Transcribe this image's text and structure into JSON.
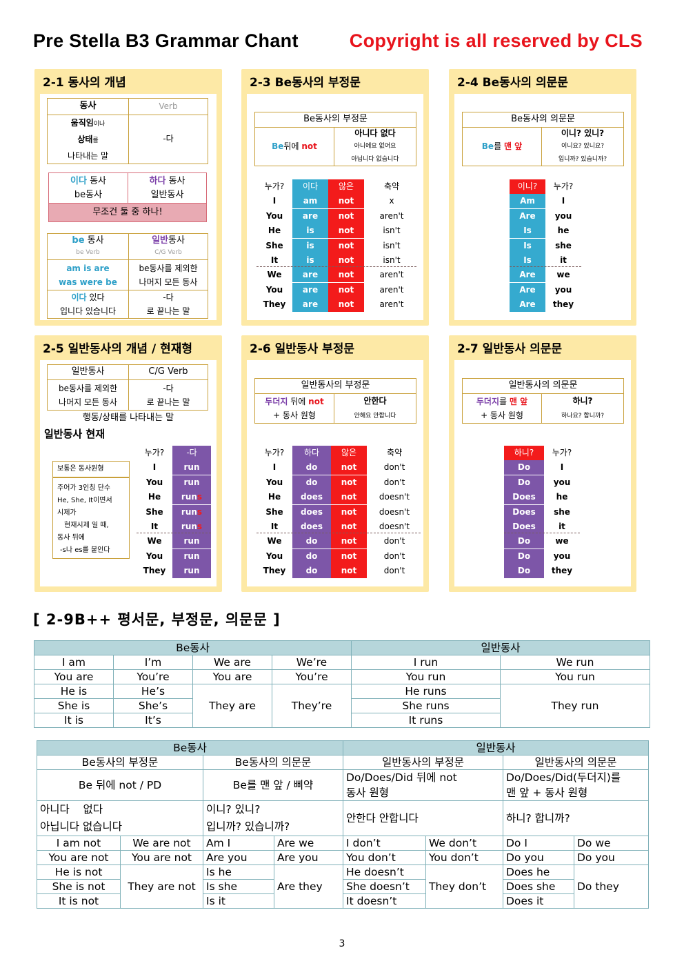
{
  "header": {
    "title": "Pre Stella B3 Grammar Chant",
    "copyright": "Copyright is all reserved by CLS"
  },
  "c21": {
    "title": "2-1 동사의 개념",
    "verb": "동사",
    "verb_en": "Verb",
    "def1": "움직임",
    "def1b": "이나",
    "def2": "상태",
    "def2b": "를",
    "def3": "나타내는 말",
    "da": "-다",
    "ida": "이다",
    "ida2": "동사",
    "be": "be동사",
    "hada": "하다",
    "hada2": "동사",
    "ilban": "일반동사",
    "must": "무조건 둘 중 하나!",
    "be_verb": "be",
    "be_verb2": "동사",
    "be_en": "be Verb",
    "ilban_h": "일반",
    "ilban_h2": "동사",
    "cg": "C/G Verb",
    "forms1": "am is are",
    "forms2": "was were be",
    "except1": "be동사를 제외한",
    "except2": "나머지 모든 동사",
    "ida3": "이다",
    "ida4": "있다",
    "da2": "-다",
    "ipnida": "입니다 있습니다",
    "ending": "로 끝나는 말"
  },
  "c23": {
    "title": "2-3 Be동사의 부정문",
    "hdr": "Be동사의 부정문",
    "rule_be": "Be",
    "rule_mid": "뒤에",
    "rule_not": "not",
    "mean": "아니다 없다",
    "mean2": "아니에요 없어요",
    "mean3": "아닙니다 없습니다",
    "col_who": "누가?",
    "col_ida": "이다",
    "col_not": "않은",
    "col_short": "축약",
    "rows": [
      [
        "I",
        "am",
        "not",
        "x"
      ],
      [
        "You",
        "are",
        "not",
        "aren't"
      ],
      [
        "He",
        "is",
        "not",
        "isn't"
      ],
      [
        "She",
        "is",
        "not",
        "isn't"
      ],
      [
        "It",
        "is",
        "not",
        "isn't"
      ],
      [
        "We",
        "are",
        "not",
        "aren't"
      ],
      [
        "You",
        "are",
        "not",
        "aren't"
      ],
      [
        "They",
        "are",
        "not",
        "aren't"
      ]
    ]
  },
  "c24": {
    "title": "2-4 Be동사의 의문문",
    "hdr": "Be동사의 의문문",
    "rule_be": "Be",
    "rule_mid": "를",
    "rule_front": "맨 앞",
    "mean": "이니? 있니?",
    "mean2": "이니요? 있니요?",
    "mean3": "입니까? 있습니까?",
    "col_q": "이니?",
    "col_who": "누가?",
    "rows": [
      [
        "Am",
        "I"
      ],
      [
        "Are",
        "you"
      ],
      [
        "Is",
        "he"
      ],
      [
        "Is",
        "she"
      ],
      [
        "Is",
        "it"
      ],
      [
        "Are",
        "we"
      ],
      [
        "Are",
        "you"
      ],
      [
        "Are",
        "they"
      ]
    ]
  },
  "c25": {
    "title": "2-5 일반동사의 개념 / 현재형",
    "h1": "일반동사",
    "h2": "C/G Verb",
    "r1a": "be동사를 제외한",
    "r1b": "-다",
    "r2a": "나머지 모든 동사",
    "r2b": "로 끝나는 말",
    "desc": "행동/상태를 나타내는 말",
    "sub": "일반동사 현재",
    "note1": "보통은 동사원형",
    "note2": "주어가 3인칭 단수",
    "note3": "He, She, It이면서",
    "note4": "시제가",
    "note5": "현재시제 일 때,",
    "note6": "동사 뒤에",
    "note7": "-s나 es를 붙인다",
    "col_who": "누가?",
    "col_da": "-다",
    "rows": [
      [
        "I",
        "run",
        ""
      ],
      [
        "You",
        "run",
        ""
      ],
      [
        "He",
        "run",
        "s"
      ],
      [
        "She",
        "run",
        "s"
      ],
      [
        "It",
        "run",
        "s"
      ],
      [
        "We",
        "run",
        ""
      ],
      [
        "You",
        "run",
        ""
      ],
      [
        "They",
        "run",
        ""
      ]
    ]
  },
  "c26": {
    "title": "2-6 일반동사 부정문",
    "hdr": "일반동사의 부정문",
    "rule_a": "두더지",
    "rule_b": "뒤에",
    "rule_not": "not",
    "rule_c": "+ 동사 원형",
    "mean": "안한다",
    "mean2": "안해요 안합니다",
    "col_who": "누가?",
    "col_do": "하다",
    "col_not": "않은",
    "col_short": "축약",
    "rows": [
      [
        "I",
        "do",
        "not",
        "don't"
      ],
      [
        "You",
        "do",
        "not",
        "don't"
      ],
      [
        "He",
        "does",
        "not",
        "doesn't"
      ],
      [
        "She",
        "does",
        "not",
        "doesn't"
      ],
      [
        "It",
        "does",
        "not",
        "doesn't"
      ],
      [
        "We",
        "do",
        "not",
        "don't"
      ],
      [
        "You",
        "do",
        "not",
        "don't"
      ],
      [
        "They",
        "do",
        "not",
        "don't"
      ]
    ]
  },
  "c27": {
    "title": "2-7 일반동사 의문문",
    "hdr": "일반동사의 의문문",
    "rule_a": "두더지",
    "rule_b": "를",
    "rule_front": "맨 앞",
    "rule_c": "+ 동사 원형",
    "mean": "하니?",
    "mean2": "하나요? 합니까?",
    "col_q": "하니?",
    "col_who": "누가?",
    "rows": [
      [
        "Do",
        "I"
      ],
      [
        "Do",
        "you"
      ],
      [
        "Does",
        "he"
      ],
      [
        "Does",
        "she"
      ],
      [
        "Does",
        "it"
      ],
      [
        "Do",
        "we"
      ],
      [
        "Do",
        "you"
      ],
      [
        "Do",
        "they"
      ]
    ]
  },
  "section": "[ 2-9B++ 평서문, 부정문, 의문문 ]",
  "t1": {
    "h_be": "Be동사",
    "h_ilban": "일반동사",
    "r": [
      [
        "I am",
        "I’m",
        "We are",
        "We’re",
        "I run",
        "We run"
      ],
      [
        "You are",
        "You’re",
        "You are",
        "You’re",
        "You run",
        "You run"
      ]
    ],
    "he": [
      "He is",
      "He’s"
    ],
    "she": [
      "She is",
      "She’s"
    ],
    "it": [
      "It is",
      "It’s"
    ],
    "they": "They are",
    "theyre": "They’re",
    "hr": "He runs",
    "sr": "She runs",
    "ir": "It runs",
    "tr": "They run"
  },
  "t2": {
    "h_be": "Be동사",
    "h_ilban": "일반동사",
    "s1": "Be동사의 부정문",
    "s2": "Be동사의 의문문",
    "s3": "일반동사의 부정문",
    "s4": "일반동사의 의문문",
    "r1": "Be 뒤에 not / PD",
    "r2": "Be를 맨 앞 / 삐약",
    "r3a": "Do/Does/Did 뒤에 not",
    "r3b": "동사 원형",
    "r4a": "Do/Does/Did(두더지)를",
    "r4b": "맨 앞 + 동사 원형",
    "m1a": "아니다    없다",
    "m1b": "아닙니다 없습니다",
    "m2a": "이니? 있니?",
    "m2b": "입니까? 있습니까?",
    "m3": "안한다 안합니다",
    "m4": "하니? 합니까?",
    "rows": [
      [
        "I am not",
        "We are not",
        "Am I",
        "Are we",
        "I don’t",
        "We don’t",
        "Do I",
        "Do we"
      ],
      [
        "You are not",
        "You are not",
        "Are you",
        "Are you",
        "You don’t",
        "You don’t",
        "Do you",
        "Do you"
      ]
    ],
    "h": [
      "He is not",
      "Is he",
      "He doesn’t",
      "Does he"
    ],
    "s": [
      "She is not",
      "Is she",
      "She doesn’t",
      "Does she"
    ],
    "i": [
      "It is not",
      "Is it",
      "It doesn’t",
      "Does it"
    ],
    "tn": "They are not",
    "at": "Are they",
    "td": "They don’t",
    "dt": "Do they"
  },
  "page": "3"
}
